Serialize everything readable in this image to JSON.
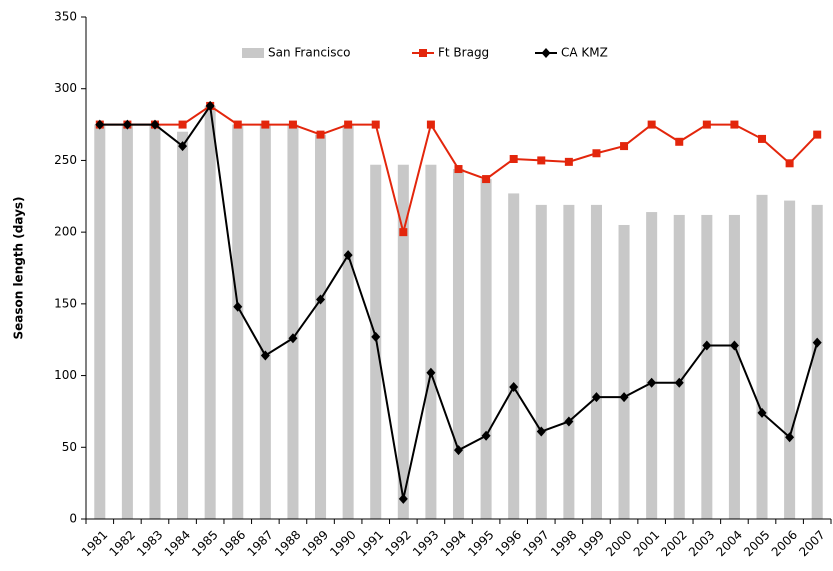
{
  "chart_data": {
    "type": "combo",
    "y_label": "Season length (days)",
    "categories": [
      "1981",
      "1982",
      "1983",
      "1984",
      "1985",
      "1986",
      "1987",
      "1988",
      "1989",
      "1990",
      "1991",
      "1992",
      "1993",
      "1994",
      "1995",
      "1996",
      "1997",
      "1998",
      "1999",
      "2000",
      "2001",
      "2002",
      "2003",
      "2004",
      "2005",
      "2006",
      "2007"
    ],
    "series": [
      {
        "name": "San Francisco",
        "type": "bar",
        "color": "#c8c8c8",
        "values": [
          275,
          275,
          275,
          270,
          288,
          275,
          275,
          275,
          268,
          275,
          247,
          247,
          247,
          244,
          237,
          227,
          219,
          219,
          219,
          205,
          214,
          212,
          212,
          212,
          226,
          222,
          219
        ]
      },
      {
        "name": "Ft Bragg",
        "type": "line",
        "marker": "square",
        "color": "#e3260c",
        "values": [
          275,
          275,
          275,
          275,
          288,
          275,
          275,
          275,
          268,
          275,
          275,
          200,
          275,
          244,
          237,
          251,
          250,
          249,
          255,
          260,
          275,
          263,
          275,
          275,
          265,
          248,
          268
        ]
      },
      {
        "name": "CA KMZ",
        "type": "line",
        "marker": "diamond",
        "color": "#000000",
        "values": [
          275,
          275,
          275,
          260,
          288,
          148,
          114,
          126,
          153,
          184,
          127,
          14,
          102,
          48,
          58,
          92,
          61,
          68,
          85,
          85,
          95,
          95,
          121,
          121,
          74,
          57,
          123
        ]
      }
    ],
    "ylim": [
      0,
      350
    ],
    "yticks": [
      0,
      50,
      100,
      150,
      200,
      250,
      300,
      350
    ],
    "grid": false,
    "legend": "top"
  }
}
